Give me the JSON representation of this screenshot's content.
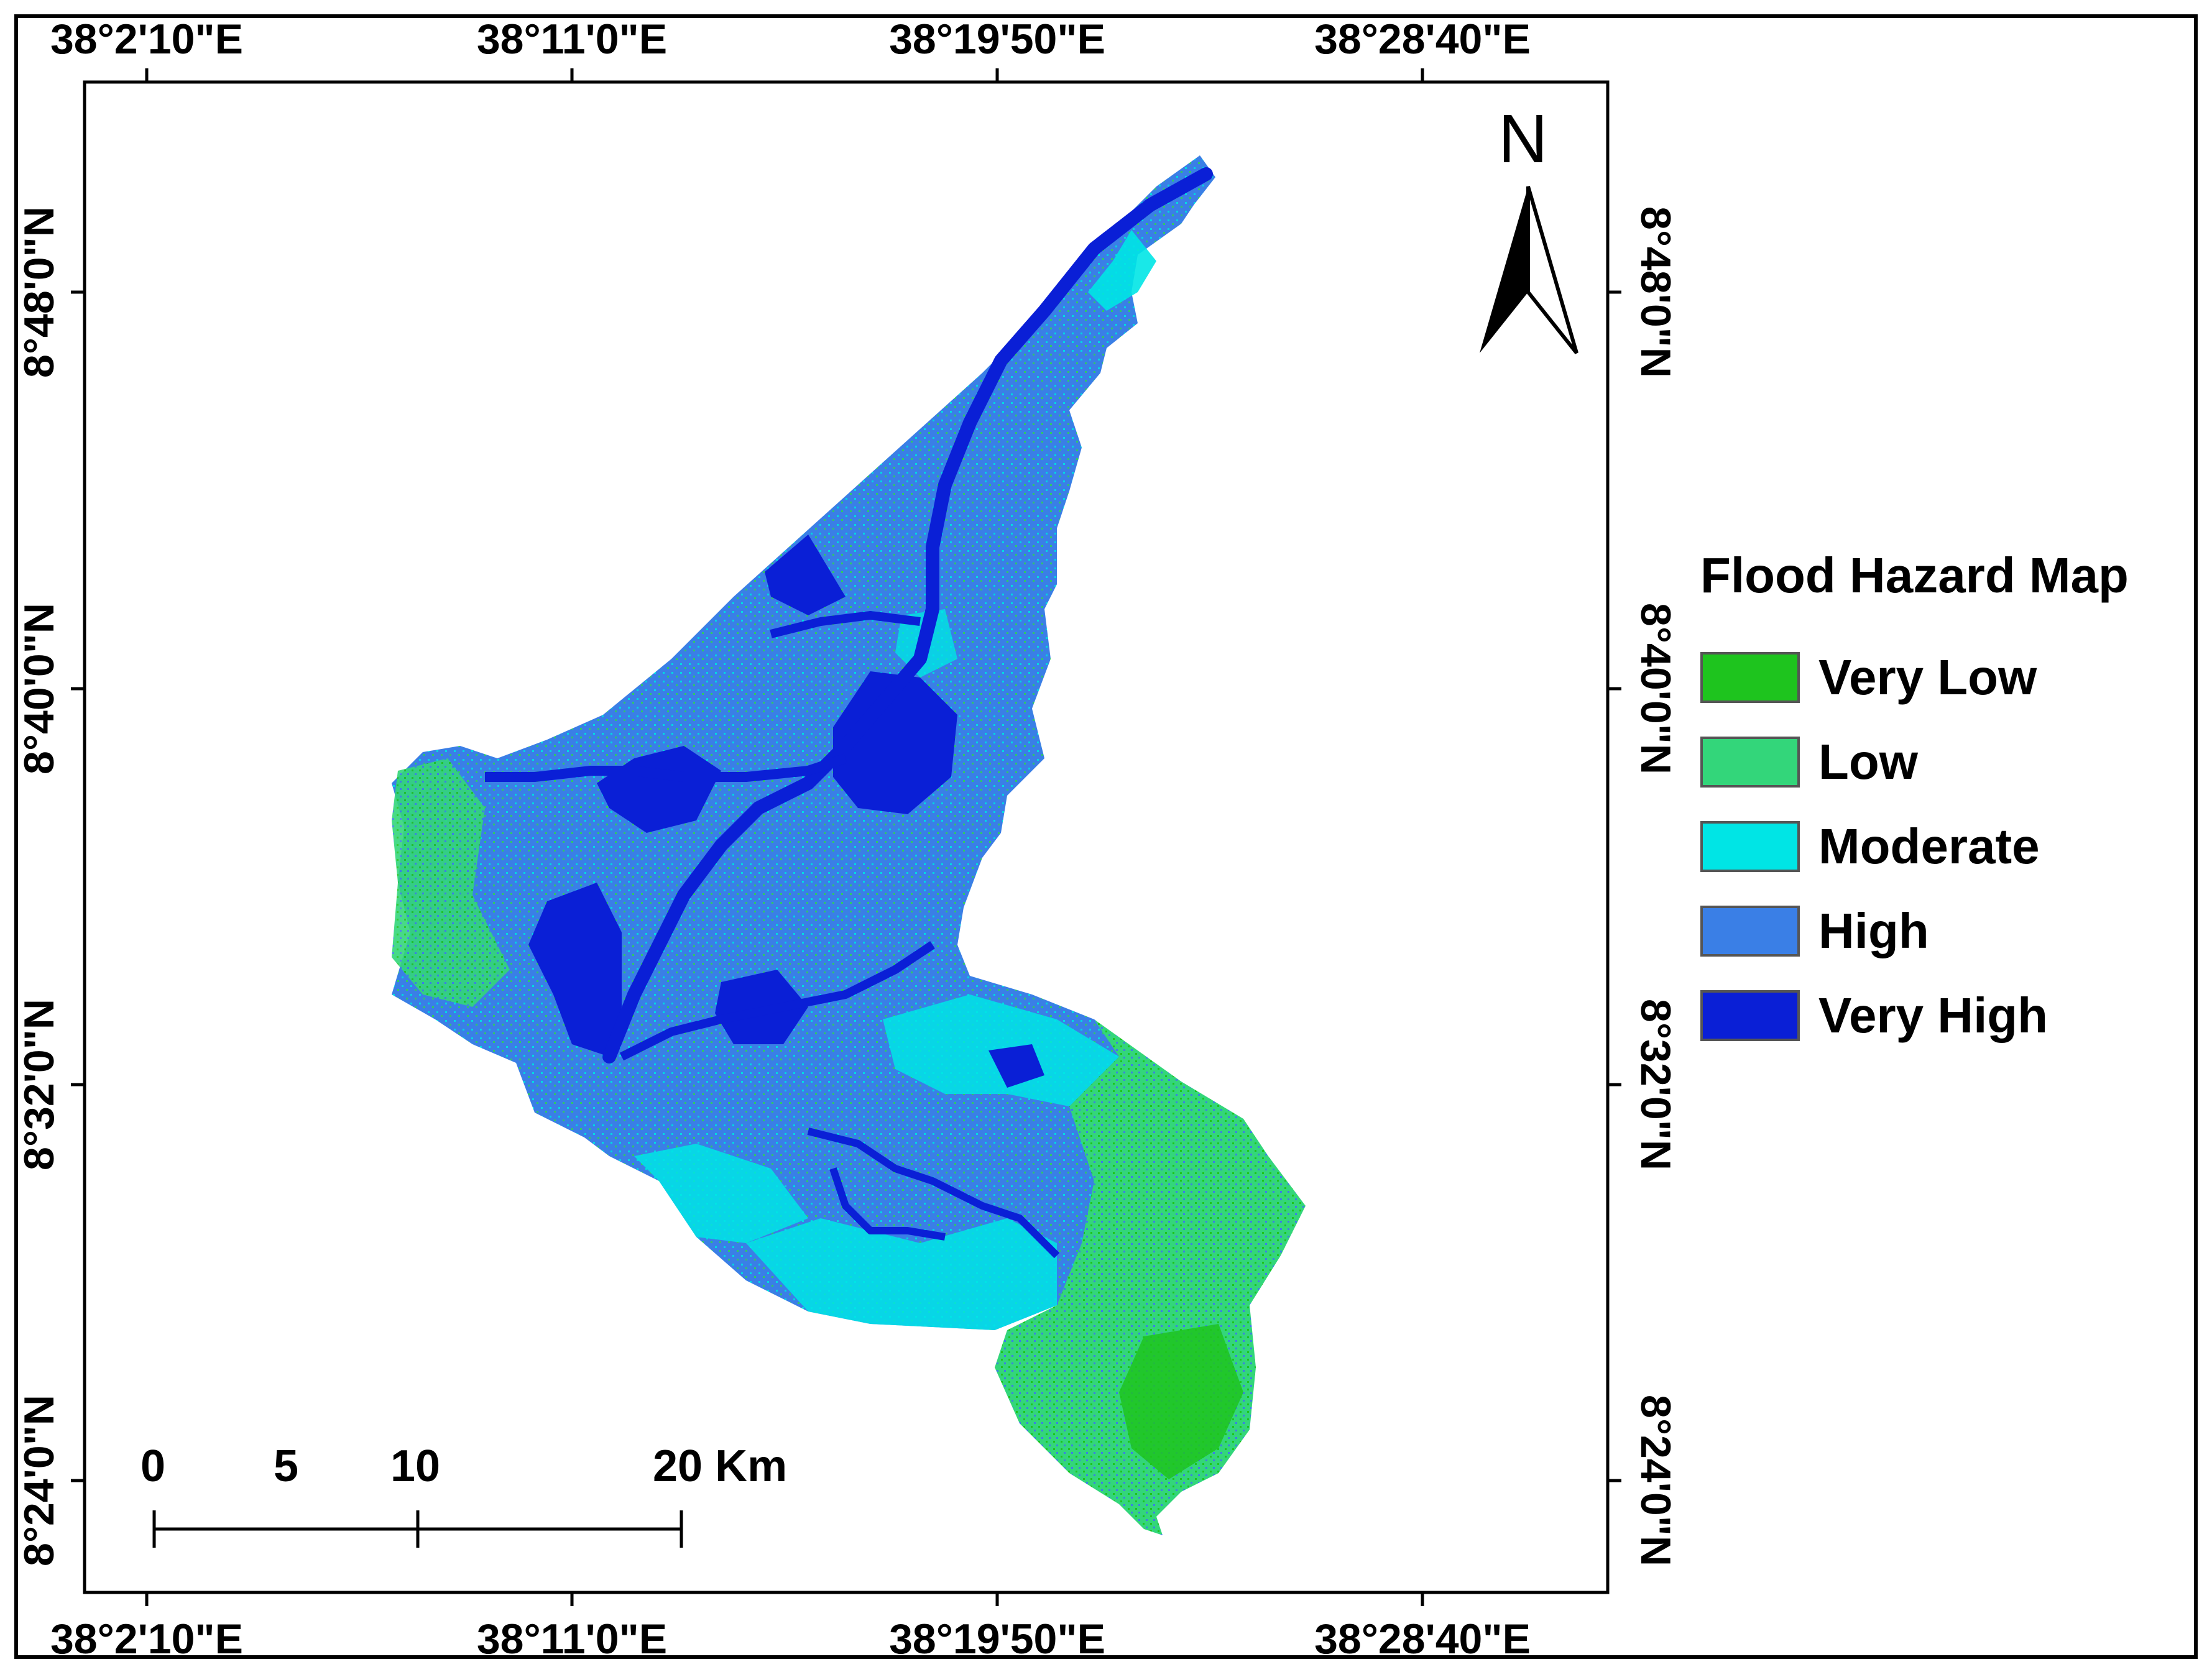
{
  "map": {
    "top_longitudes": [
      "38°2'10\"E",
      "38°11'0\"E",
      "38°19'50\"E",
      "38°28'40\"E"
    ],
    "bottom_longitudes": [
      "38°2'10\"E",
      "38°11'0\"E",
      "38°19'50\"E",
      "38°28'40\"E"
    ],
    "left_latitudes": [
      "8°48'0\"N",
      "8°40'0\"N",
      "8°32'0\"N",
      "8°24'0\"N"
    ],
    "right_latitudes": [
      "8°48'0\"N",
      "8°40'0\"N",
      "8°32'0\"N",
      "8°24'0\"N"
    ],
    "north_arrow": {
      "label": "N",
      "icon": "north-arrow-icon"
    }
  },
  "legend": {
    "title": "Flood Hazard Map",
    "items": [
      {
        "label": "Very Low",
        "color": "#1ec41e"
      },
      {
        "label": "Low",
        "color": "#33d67a"
      },
      {
        "label": "Moderate",
        "color": "#00e5e5"
      },
      {
        "label": "High",
        "color": "#3a7fe6"
      },
      {
        "label": "Very High",
        "color": "#0a1fd6"
      }
    ]
  },
  "scale_bar": {
    "labels": [
      "0",
      "5",
      "10",
      "20 Km"
    ]
  }
}
